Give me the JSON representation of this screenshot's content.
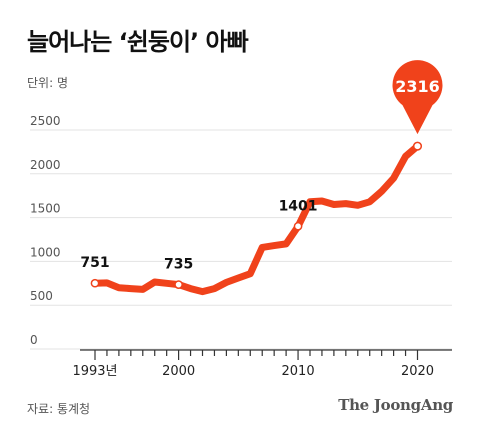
{
  "title": "늘어나는 ‘쉰둥이’ 아빠",
  "unit_label": "단위: 명",
  "source_label": "자료: 통계청",
  "brand": "The JoongAng",
  "colors": {
    "line": "#f0421b",
    "grid": "#e3e3e3",
    "axis": "#333333"
  },
  "chart_data": {
    "type": "line",
    "title": "늘어나는 ‘쉰둥이’ 아빠",
    "ylabel": "단위: 명",
    "ylim": [
      0,
      2500
    ],
    "yticks": [
      0,
      500,
      1000,
      1500,
      2000,
      2500
    ],
    "xlim": [
      1993,
      2021
    ],
    "xtick_labels": [
      {
        "year": 1993,
        "label": "1993년"
      },
      {
        "year": 2000,
        "label": "2000"
      },
      {
        "year": 2010,
        "label": "2010"
      },
      {
        "year": 2020,
        "label": "2020"
      }
    ],
    "x": [
      1993,
      1994,
      1995,
      1996,
      1997,
      1998,
      1999,
      2000,
      2001,
      2002,
      2003,
      2004,
      2005,
      2006,
      2007,
      2008,
      2009,
      2010,
      2011,
      2012,
      2013,
      2014,
      2015,
      2016,
      2017,
      2018,
      2019,
      2020
    ],
    "values": [
      751,
      755,
      700,
      690,
      680,
      765,
      750,
      735,
      690,
      655,
      690,
      760,
      810,
      860,
      1160,
      1180,
      1200,
      1401,
      1680,
      1690,
      1650,
      1660,
      1640,
      1680,
      1800,
      1950,
      2200,
      2316
    ],
    "annotations": [
      {
        "year": 1993,
        "value": "751"
      },
      {
        "year": 2000,
        "value": "735"
      },
      {
        "year": 2010,
        "value": "1401"
      }
    ],
    "highlight": {
      "year": 2020,
      "value": "2316"
    },
    "grid": true
  }
}
